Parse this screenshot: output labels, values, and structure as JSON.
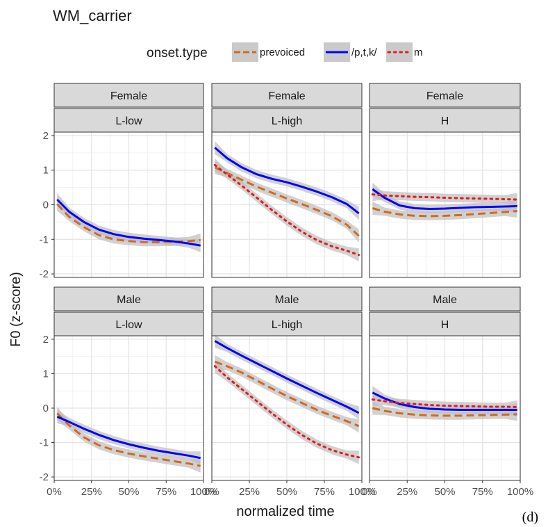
{
  "caption": "(d)",
  "chart_data": {
    "type": "line",
    "title": "WM_carrier",
    "xlabel": "normalized time",
    "ylabel": "F0 (z-score)",
    "legend": {
      "title": "onset.type",
      "position": "top",
      "entries": [
        "prevoiced",
        "/p,t,k/",
        "m"
      ]
    },
    "x_ticks": [
      "0%",
      "25%",
      "50%",
      "75%",
      "100%"
    ],
    "x_tick_values": [
      0,
      25,
      50,
      75,
      100
    ],
    "xlim": [
      0,
      100
    ],
    "y_ticks": [
      "-2",
      "-1",
      "0",
      "1",
      "2"
    ],
    "y_tick_values": [
      -2,
      -1,
      0,
      1,
      2
    ],
    "ylim": [
      -2.1,
      2.1
    ],
    "grid": true,
    "colors": {
      "prevoiced": "#d2691e",
      "/p,t,k/": "#0000ff",
      "m": "#e31a1c",
      "ribbon": "#bdbdbd",
      "strip": "#d9d9d9"
    },
    "x": [
      2,
      10,
      20,
      30,
      40,
      50,
      60,
      70,
      80,
      90,
      98
    ],
    "panels": [
      {
        "row": "Female",
        "col": "L-low",
        "series": [
          {
            "name": "prevoiced",
            "values": [
              0.02,
              -0.35,
              -0.65,
              -0.88,
              -1.0,
              -1.05,
              -1.08,
              -1.08,
              -1.07,
              -1.05,
              -1.02
            ]
          },
          {
            "name": "/p,t,k/",
            "values": [
              0.15,
              -0.2,
              -0.5,
              -0.72,
              -0.85,
              -0.93,
              -0.98,
              -1.02,
              -1.06,
              -1.12,
              -1.18
            ]
          }
        ]
      },
      {
        "row": "Female",
        "col": "L-high",
        "series": [
          {
            "name": "prevoiced",
            "values": [
              1.08,
              0.92,
              0.72,
              0.52,
              0.35,
              0.18,
              0.02,
              -0.15,
              -0.33,
              -0.58,
              -0.9
            ]
          },
          {
            "name": "/p,t,k/",
            "values": [
              1.65,
              1.35,
              1.08,
              0.88,
              0.75,
              0.65,
              0.52,
              0.38,
              0.22,
              0.02,
              -0.25
            ]
          },
          {
            "name": "m",
            "values": [
              1.15,
              0.88,
              0.55,
              0.2,
              -0.15,
              -0.48,
              -0.78,
              -1.02,
              -1.2,
              -1.33,
              -1.45
            ]
          }
        ]
      },
      {
        "row": "Female",
        "col": "H",
        "series": [
          {
            "name": "prevoiced",
            "values": [
              -0.1,
              -0.2,
              -0.28,
              -0.32,
              -0.33,
              -0.32,
              -0.3,
              -0.27,
              -0.24,
              -0.21,
              -0.18
            ]
          },
          {
            "name": "/p,t,k/",
            "values": [
              0.45,
              0.2,
              -0.02,
              -0.1,
              -0.12,
              -0.11,
              -0.09,
              -0.07,
              -0.06,
              -0.05,
              -0.04
            ]
          },
          {
            "name": "m",
            "values": [
              0.3,
              0.27,
              0.25,
              0.23,
              0.22,
              0.2,
              0.19,
              0.18,
              0.17,
              0.16,
              0.15
            ]
          }
        ]
      },
      {
        "row": "Male",
        "col": "L-low",
        "series": [
          {
            "name": "prevoiced",
            "values": [
              -0.15,
              -0.5,
              -0.85,
              -1.08,
              -1.22,
              -1.32,
              -1.4,
              -1.47,
              -1.54,
              -1.61,
              -1.68
            ]
          },
          {
            "name": "/p,t,k/",
            "values": [
              -0.25,
              -0.4,
              -0.6,
              -0.78,
              -0.93,
              -1.05,
              -1.15,
              -1.24,
              -1.31,
              -1.38,
              -1.45
            ]
          }
        ]
      },
      {
        "row": "Male",
        "col": "L-high",
        "series": [
          {
            "name": "prevoiced",
            "values": [
              1.35,
              1.22,
              1.03,
              0.8,
              0.57,
              0.35,
              0.15,
              -0.05,
              -0.22,
              -0.38,
              -0.52
            ]
          },
          {
            "name": "/p,t,k/",
            "values": [
              1.95,
              1.75,
              1.52,
              1.3,
              1.08,
              0.86,
              0.65,
              0.44,
              0.24,
              0.04,
              -0.14
            ]
          },
          {
            "name": "m",
            "values": [
              1.22,
              0.9,
              0.55,
              0.2,
              -0.15,
              -0.48,
              -0.78,
              -1.03,
              -1.22,
              -1.35,
              -1.43
            ]
          }
        ]
      },
      {
        "row": "Male",
        "col": "H",
        "series": [
          {
            "name": "prevoiced",
            "values": [
              0.0,
              -0.08,
              -0.15,
              -0.19,
              -0.21,
              -0.22,
              -0.22,
              -0.21,
              -0.2,
              -0.19,
              -0.18
            ]
          },
          {
            "name": "/p,t,k/",
            "values": [
              0.45,
              0.28,
              0.12,
              0.03,
              -0.02,
              -0.04,
              -0.05,
              -0.05,
              -0.05,
              -0.05,
              -0.05
            ]
          },
          {
            "name": "m",
            "values": [
              0.25,
              0.2,
              0.15,
              0.12,
              0.09,
              0.07,
              0.06,
              0.05,
              0.04,
              0.04,
              0.03
            ]
          }
        ]
      }
    ]
  }
}
